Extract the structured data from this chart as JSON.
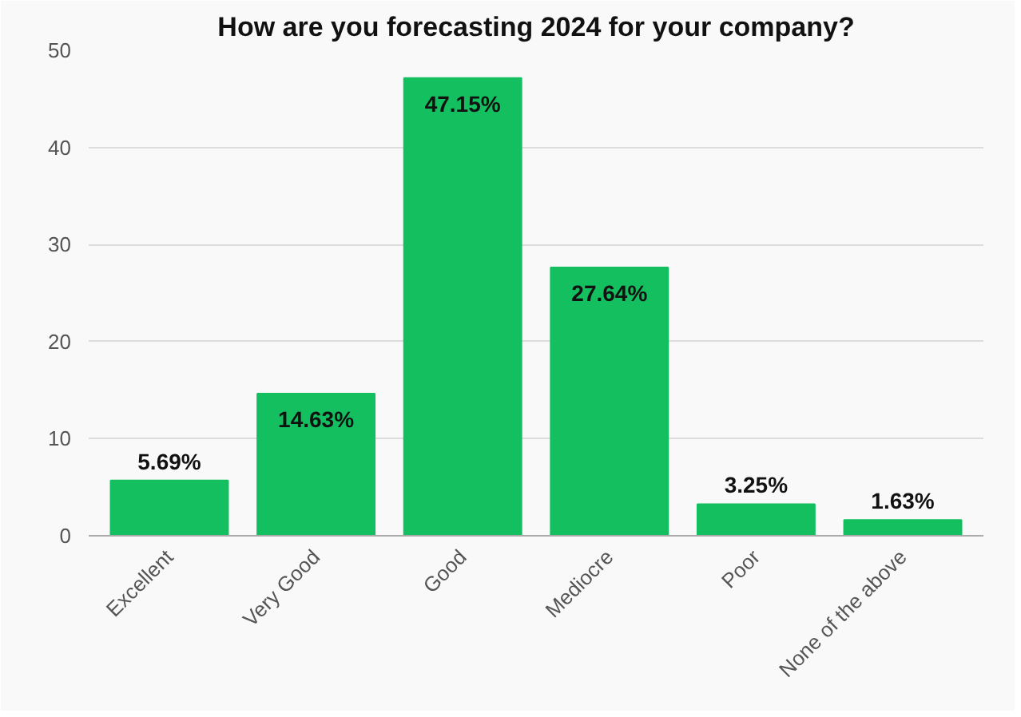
{
  "chart_data": {
    "type": "bar",
    "title": "How are you forecasting 2024 for your company?",
    "categories": [
      "Excellent",
      "Very Good",
      "Good",
      "Mediocre",
      "Poor",
      "None of the above"
    ],
    "values": [
      5.69,
      14.63,
      47.15,
      27.64,
      3.25,
      1.63
    ],
    "value_labels": [
      "5.69%",
      "14.63%",
      "47.15%",
      "27.64%",
      "3.25%",
      "1.63%"
    ],
    "color": "#13bf5f",
    "ylim": [
      0,
      50
    ],
    "yticks": [
      0,
      10,
      20,
      30,
      40,
      50
    ],
    "grid": "y"
  }
}
